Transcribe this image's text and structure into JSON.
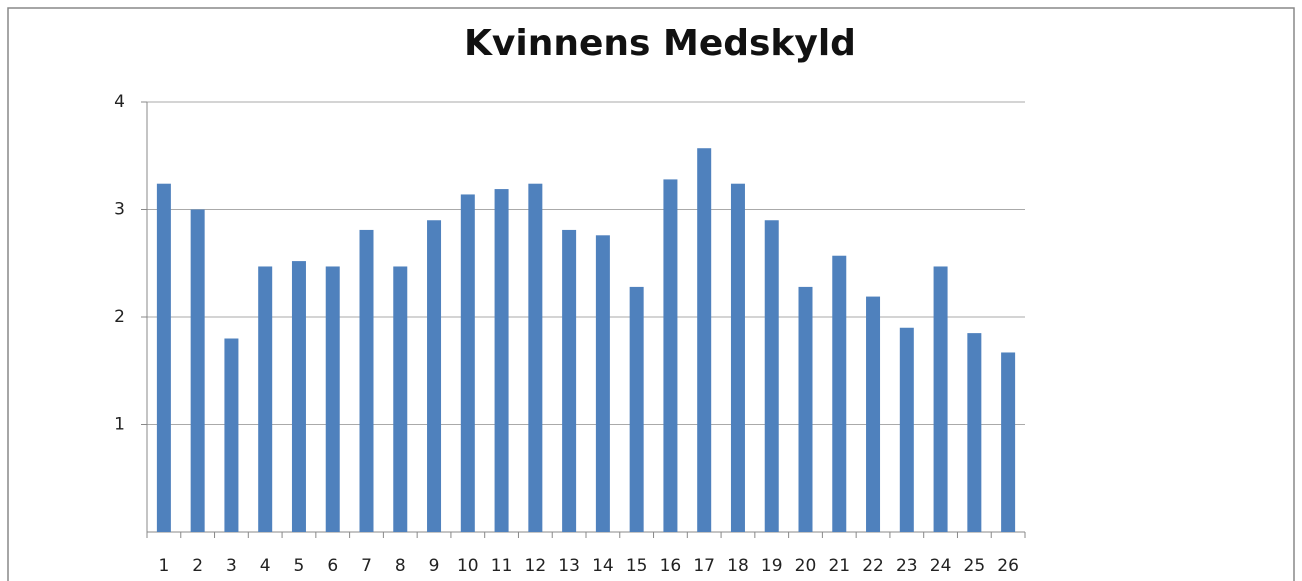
{
  "chart_data": {
    "type": "bar",
    "title": "Kvinnens Medskyld",
    "categories": [
      "1",
      "2",
      "3",
      "4",
      "5",
      "6",
      "7",
      "8",
      "9",
      "10",
      "11",
      "12",
      "13",
      "14",
      "15",
      "16",
      "17",
      "18",
      "19",
      "20",
      "21",
      "22",
      "23",
      "24",
      "25",
      "26"
    ],
    "values": [
      3.24,
      3.0,
      1.8,
      2.47,
      2.52,
      2.47,
      2.81,
      2.47,
      2.9,
      3.14,
      3.19,
      3.24,
      2.81,
      2.76,
      2.28,
      3.28,
      3.57,
      3.24,
      2.9,
      2.28,
      2.57,
      2.19,
      1.9,
      2.47,
      1.85,
      1.67
    ],
    "color": "#4f81bd",
    "ylim": [
      0,
      4
    ],
    "yticks": [
      1,
      2,
      3,
      4
    ],
    "grid": true
  }
}
